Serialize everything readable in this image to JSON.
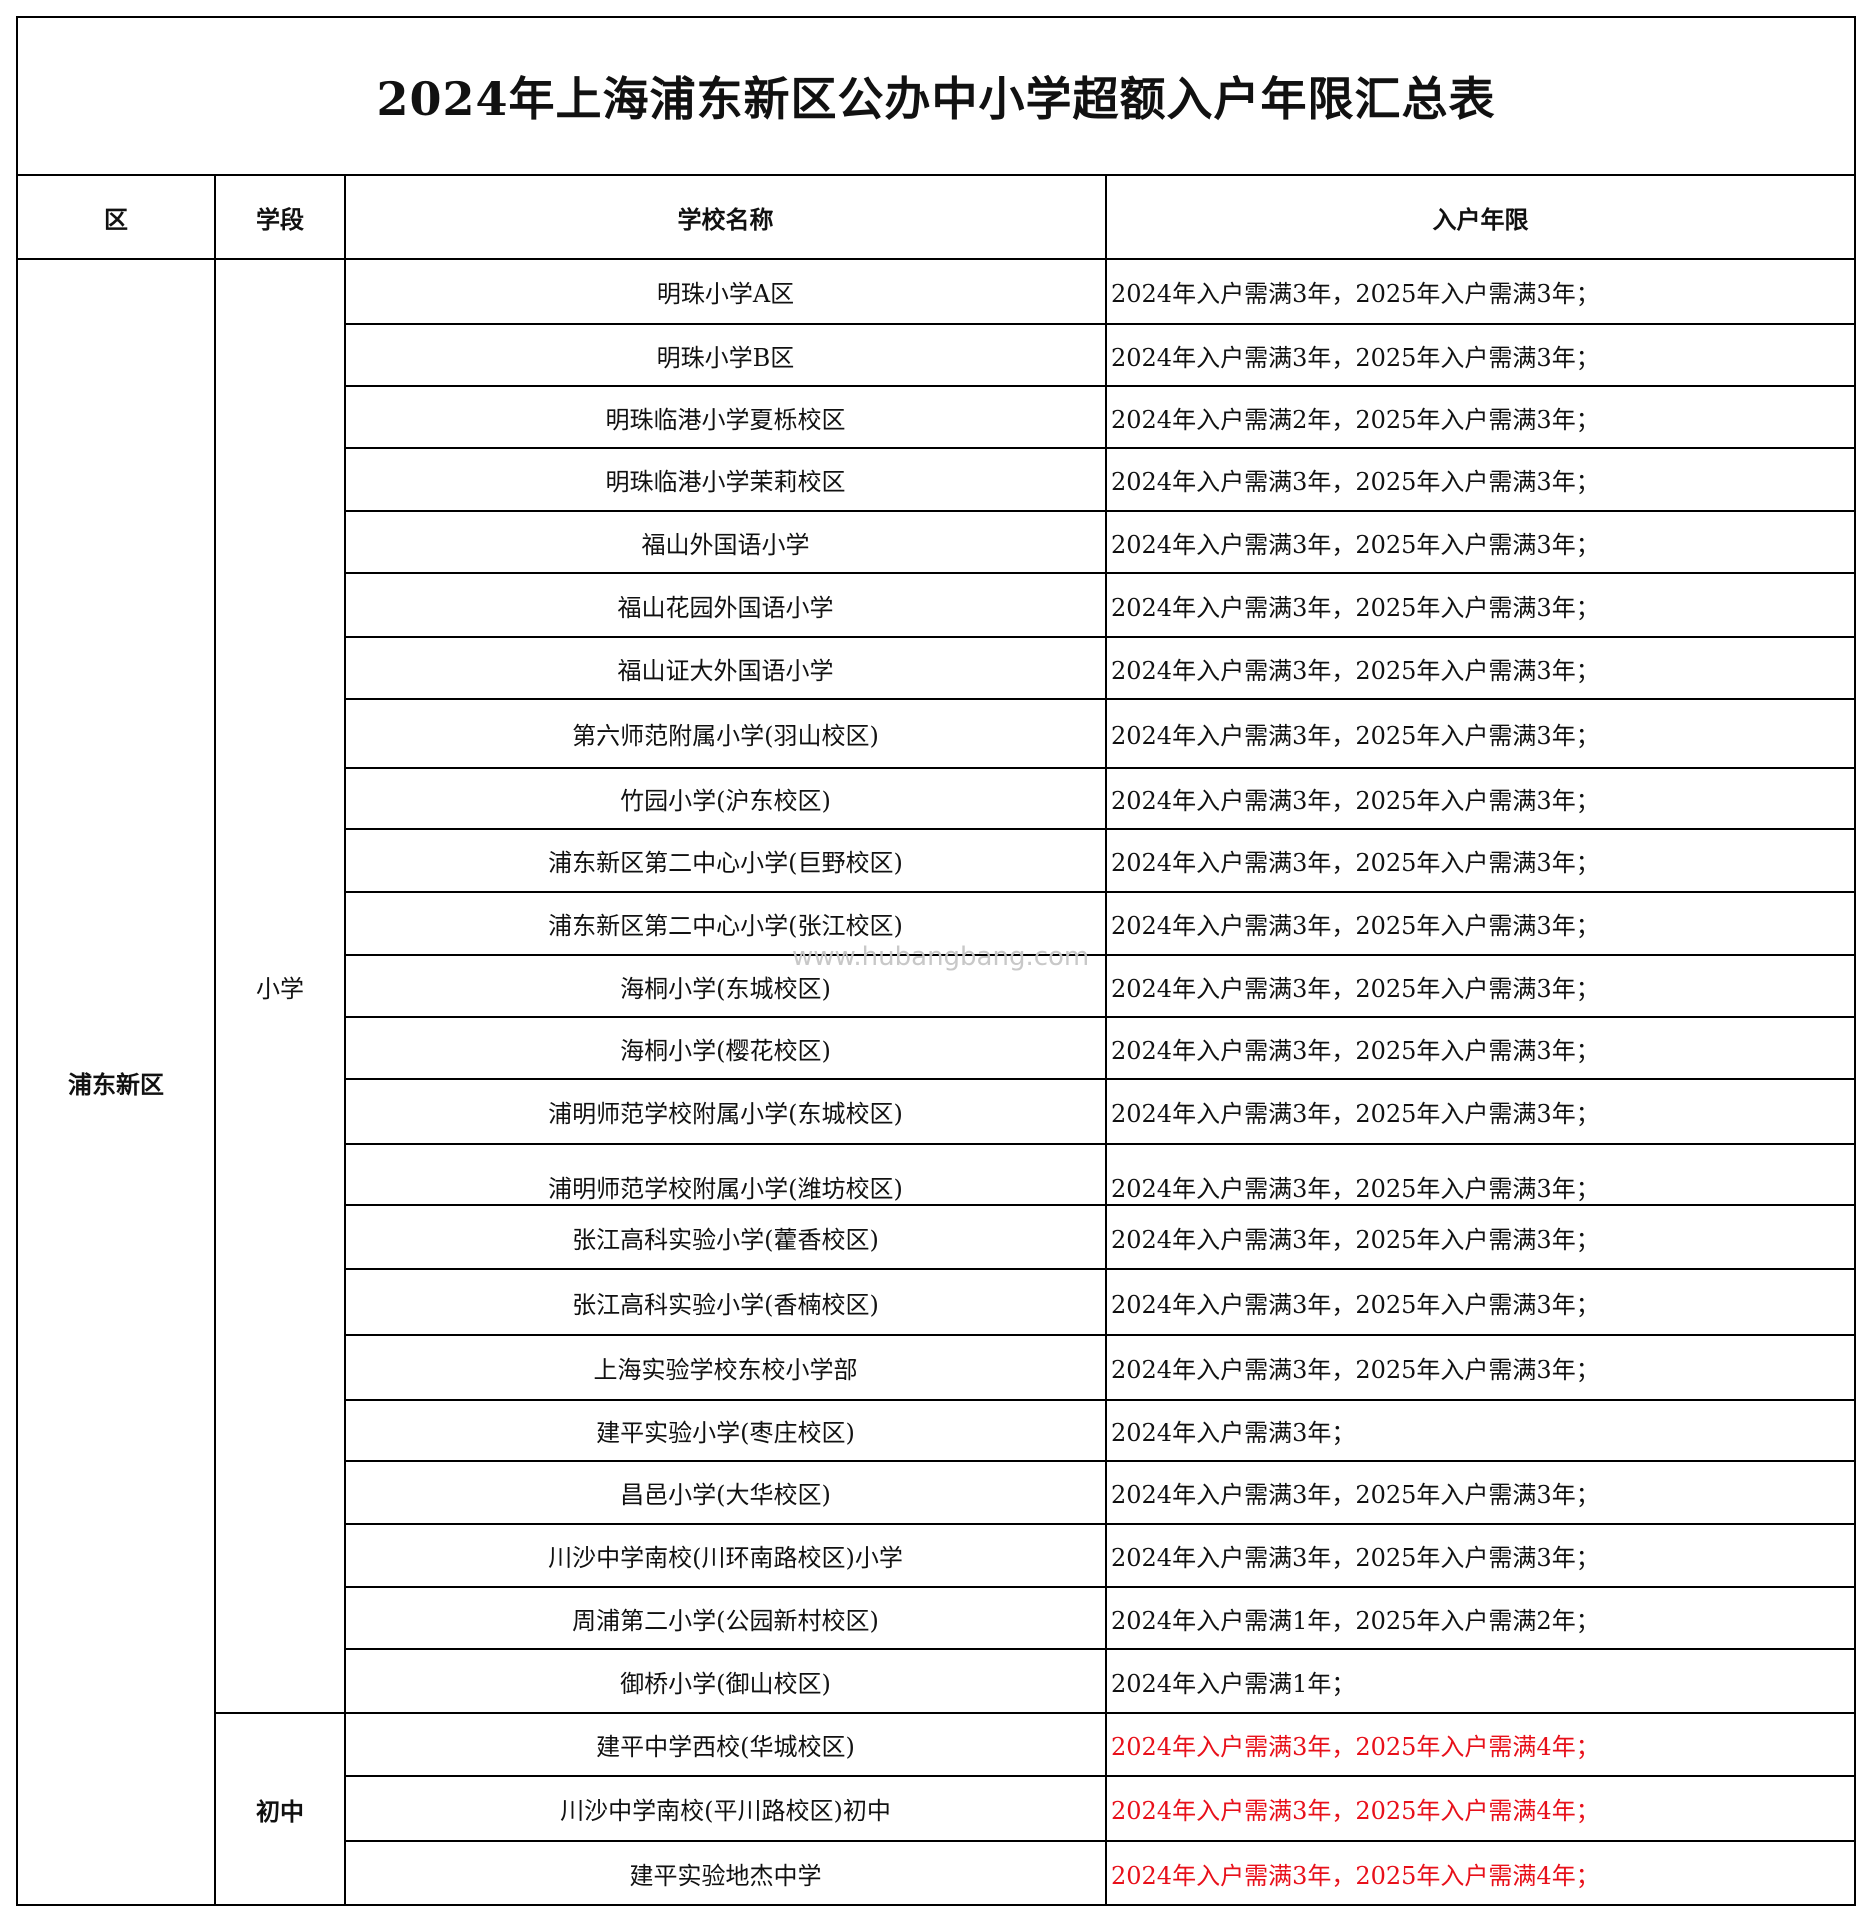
{
  "title": "2024年上海浦东新区公办中小学超额入户年限汇总表",
  "headers": {
    "district": "区",
    "stage": "学段",
    "school": "学校名称",
    "requirement": "入户年限"
  },
  "district": "浦东新区",
  "watermark": "www.hubangbang.com",
  "highlight_color": "#e8101a",
  "groups": [
    {
      "stage": "小学",
      "rows": [
        {
          "school": "明珠小学A区",
          "requirement": "2024年入户需满3年，2025年入户需满3年；"
        },
        {
          "school": "明珠小学B区",
          "requirement": "2024年入户需满3年，2025年入户需满3年；"
        },
        {
          "school": "明珠临港小学夏栎校区",
          "requirement": "2024年入户需满2年，2025年入户需满3年；"
        },
        {
          "school": "明珠临港小学茉莉校区",
          "requirement": "2024年入户需满3年，2025年入户需满3年；"
        },
        {
          "school": "福山外国语小学",
          "requirement": "2024年入户需满3年，2025年入户需满3年；"
        },
        {
          "school": "福山花园外国语小学",
          "requirement": "2024年入户需满3年，2025年入户需满3年；"
        },
        {
          "school": "福山证大外国语小学",
          "requirement": "2024年入户需满3年，2025年入户需满3年；"
        },
        {
          "school": "第六师范附属小学(羽山校区)",
          "requirement": "2024年入户需满3年，2025年入户需满3年；"
        },
        {
          "school": "竹园小学(沪东校区)",
          "requirement": "2024年入户需满3年，2025年入户需满3年；"
        },
        {
          "school": "浦东新区第二中心小学(巨野校区)",
          "requirement": "2024年入户需满3年，2025年入户需满3年；"
        },
        {
          "school": "浦东新区第二中心小学(张江校区)",
          "requirement": "2024年入户需满3年，2025年入户需满3年；"
        },
        {
          "school": "海桐小学(东城校区)",
          "requirement": "2024年入户需满3年，2025年入户需满3年；"
        },
        {
          "school": "海桐小学(樱花校区)",
          "requirement": "2024年入户需满3年，2025年入户需满3年；"
        },
        {
          "school": "浦明师范学校附属小学(东城校区)",
          "requirement": "2024年入户需满3年，2025年入户需满3年；"
        },
        {
          "school": "浦明师范学校附属小学(潍坊校区)",
          "requirement": "2024年入户需满3年，2025年入户需满3年；"
        },
        {
          "school": "张江高科实验小学(藿香校区)",
          "requirement": "2024年入户需满3年，2025年入户需满3年；"
        },
        {
          "school": "张江高科实验小学(香楠校区)",
          "requirement": "2024年入户需满3年，2025年入户需满3年；"
        },
        {
          "school": "上海实验学校东校小学部",
          "requirement": "2024年入户需满3年，2025年入户需满3年；"
        },
        {
          "school": "建平实验小学(枣庄校区)",
          "requirement": "2024年入户需满3年；"
        },
        {
          "school": "昌邑小学(大华校区)",
          "requirement": "2024年入户需满3年，2025年入户需满3年；"
        },
        {
          "school": "川沙中学南校(川环南路校区)小学",
          "requirement": "2024年入户需满3年，2025年入户需满3年；"
        },
        {
          "school": "周浦第二小学(公园新村校区)",
          "requirement": "2024年入户需满1年，2025年入户需满2年；"
        },
        {
          "school": "御桥小学(御山校区)",
          "requirement": "2024年入户需满1年；"
        }
      ]
    },
    {
      "stage": "初中",
      "rows": [
        {
          "school": "建平中学西校(华城校区)",
          "requirement": "2024年入户需满3年，2025年入户需满4年；",
          "highlight": true
        },
        {
          "school": "川沙中学南校(平川路校区)初中",
          "requirement": "2024年入户需满3年，2025年入户需满4年；",
          "highlight": true
        },
        {
          "school": "建平实验地杰中学",
          "requirement": "2024年入户需满3年，2025年入户需满4年；",
          "highlight": true
        }
      ]
    }
  ]
}
